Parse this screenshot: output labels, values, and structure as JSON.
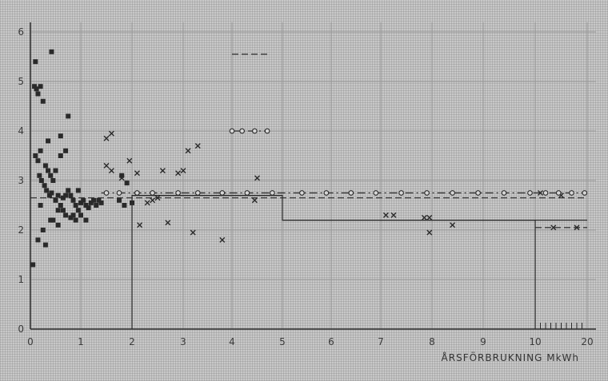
{
  "chart_data": {
    "type": "scatter",
    "title": "",
    "xlabel": "ÅRSFÖRBRUKNING   MkWh",
    "ylabel": "",
    "x_scale": "piecewise-linear (0–5 linear, 5–10 compressed, 10–20 further compressed)",
    "x_ticks": [
      "0",
      "1",
      "2",
      "3",
      "4",
      "5",
      "6",
      "7",
      "8",
      "9",
      "10",
      "20"
    ],
    "y_ticks": [
      "0",
      "1",
      "2",
      "3",
      "4",
      "5",
      "6"
    ],
    "xlim": [
      0,
      20
    ],
    "ylim": [
      0,
      6.3
    ],
    "grid": true,
    "series": [
      {
        "marker": "filled-square",
        "points": [
          [
            0.08,
            4.9
          ],
          [
            0.12,
            4.85
          ],
          [
            0.15,
            4.75
          ],
          [
            0.2,
            4.9
          ],
          [
            0.25,
            4.6
          ],
          [
            0.1,
            3.5
          ],
          [
            0.15,
            3.4
          ],
          [
            0.2,
            3.6
          ],
          [
            0.3,
            3.3
          ],
          [
            0.35,
            3.2
          ],
          [
            0.4,
            3.1
          ],
          [
            0.45,
            3.0
          ],
          [
            0.28,
            2.9
          ],
          [
            0.32,
            2.8
          ],
          [
            0.38,
            2.7
          ],
          [
            0.42,
            2.75
          ],
          [
            0.5,
            2.6
          ],
          [
            0.55,
            2.7
          ],
          [
            0.6,
            2.5
          ],
          [
            0.65,
            2.65
          ],
          [
            0.7,
            2.7
          ],
          [
            0.75,
            2.8
          ],
          [
            0.8,
            2.7
          ],
          [
            0.85,
            2.6
          ],
          [
            0.9,
            2.5
          ],
          [
            0.95,
            2.4
          ],
          [
            1.0,
            2.55
          ],
          [
            1.05,
            2.6
          ],
          [
            1.1,
            2.5
          ],
          [
            1.15,
            2.45
          ],
          [
            1.2,
            2.55
          ],
          [
            1.25,
            2.6
          ],
          [
            1.3,
            2.5
          ],
          [
            1.35,
            2.6
          ],
          [
            1.4,
            2.55
          ],
          [
            0.6,
            3.5
          ],
          [
            0.5,
            3.2
          ],
          [
            0.45,
            2.2
          ],
          [
            0.55,
            2.1
          ],
          [
            0.65,
            2.4
          ],
          [
            0.7,
            2.3
          ],
          [
            0.2,
            2.5
          ],
          [
            0.25,
            2.0
          ],
          [
            0.3,
            1.7
          ],
          [
            0.15,
            1.8
          ],
          [
            0.18,
            3.1
          ],
          [
            0.22,
            3.0
          ],
          [
            0.85,
            2.3
          ],
          [
            0.9,
            2.2
          ],
          [
            1.0,
            2.3
          ],
          [
            0.35,
            3.8
          ],
          [
            0.42,
            5.6
          ],
          [
            0.1,
            5.4
          ],
          [
            0.75,
            4.3
          ],
          [
            0.6,
            3.9
          ],
          [
            0.7,
            3.6
          ],
          [
            0.55,
            2.4
          ],
          [
            0.95,
            2.8
          ],
          [
            1.8,
            3.1
          ],
          [
            1.9,
            2.95
          ],
          [
            1.75,
            2.6
          ],
          [
            1.85,
            2.5
          ],
          [
            2.0,
            2.55
          ],
          [
            0.05,
            1.3
          ],
          [
            0.4,
            2.2
          ],
          [
            0.8,
            2.25
          ],
          [
            1.1,
            2.2
          ]
        ]
      },
      {
        "marker": "x",
        "points": [
          [
            1.5,
            3.85
          ],
          [
            1.6,
            3.95
          ],
          [
            1.5,
            3.3
          ],
          [
            1.8,
            3.05
          ],
          [
            1.95,
            3.4
          ],
          [
            2.1,
            3.15
          ],
          [
            1.6,
            3.2
          ],
          [
            2.4,
            2.6
          ],
          [
            2.5,
            2.65
          ],
          [
            2.7,
            2.15
          ],
          [
            2.6,
            3.2
          ],
          [
            2.9,
            3.15
          ],
          [
            3.0,
            3.2
          ],
          [
            3.1,
            3.6
          ],
          [
            3.3,
            3.7
          ],
          [
            3.8,
            1.8
          ],
          [
            2.3,
            2.55
          ],
          [
            3.2,
            1.95
          ],
          [
            4.5,
            3.05
          ],
          [
            4.45,
            2.6
          ],
          [
            2.15,
            2.1
          ],
          [
            7.1,
            2.3
          ],
          [
            7.25,
            2.3
          ],
          [
            7.85,
            2.25
          ],
          [
            7.95,
            2.25
          ],
          [
            7.95,
            1.95
          ],
          [
            8.4,
            2.1
          ],
          [
            11.0,
            2.75
          ],
          [
            13.5,
            2.05
          ],
          [
            18.0,
            2.05
          ],
          [
            15.0,
            2.7
          ]
        ]
      },
      {
        "marker": "open-circle",
        "points": [
          [
            4.0,
            4.0
          ],
          [
            4.2,
            4.0
          ],
          [
            4.45,
            4.0
          ],
          [
            4.7,
            4.0
          ],
          [
            1.5,
            2.75
          ],
          [
            1.75,
            2.75
          ],
          [
            2.1,
            2.75
          ],
          [
            2.4,
            2.75
          ],
          [
            2.9,
            2.75
          ],
          [
            3.3,
            2.75
          ],
          [
            3.8,
            2.75
          ],
          [
            4.3,
            2.75
          ],
          [
            4.8,
            2.75
          ],
          [
            5.4,
            2.75
          ],
          [
            5.9,
            2.75
          ],
          [
            6.4,
            2.75
          ],
          [
            6.9,
            2.75
          ],
          [
            7.4,
            2.75
          ],
          [
            7.9,
            2.75
          ],
          [
            8.4,
            2.75
          ],
          [
            8.9,
            2.75
          ],
          [
            9.4,
            2.75
          ],
          [
            9.9,
            2.75
          ],
          [
            12.0,
            2.75
          ],
          [
            14.5,
            2.75
          ],
          [
            17.0,
            2.75
          ],
          [
            19.5,
            2.75
          ]
        ]
      }
    ],
    "reference_lines": [
      {
        "style": "solid",
        "y": 2.7,
        "x": [
          2,
          5
        ]
      },
      {
        "style": "dashed",
        "y": 2.65,
        "x": [
          0,
          20
        ]
      },
      {
        "style": "dash-dot",
        "y": 2.75,
        "x": [
          1.4,
          20
        ]
      },
      {
        "style": "solid",
        "y": 2.2,
        "x": [
          5,
          10
        ]
      },
      {
        "style": "solid",
        "y": 2.2,
        "x": [
          10,
          20
        ]
      },
      {
        "style": "dashed",
        "y": 2.05,
        "x": [
          10,
          20
        ]
      },
      {
        "style": "dash-dot",
        "y": 4.0,
        "x": [
          4.0,
          4.7
        ]
      },
      {
        "style": "dashed",
        "y": 5.55,
        "x": [
          4.0,
          4.7
        ]
      }
    ],
    "step_outline": [
      [
        2,
        0
      ],
      [
        2,
        2.7
      ],
      [
        5,
        2.7
      ],
      [
        5,
        2.2
      ],
      [
        10,
        2.2
      ],
      [
        10,
        0
      ]
    ],
    "colors": {
      "background": "#c8c8c8",
      "ink": "#2a2a2a",
      "gridline": "#9a9a9a"
    }
  }
}
